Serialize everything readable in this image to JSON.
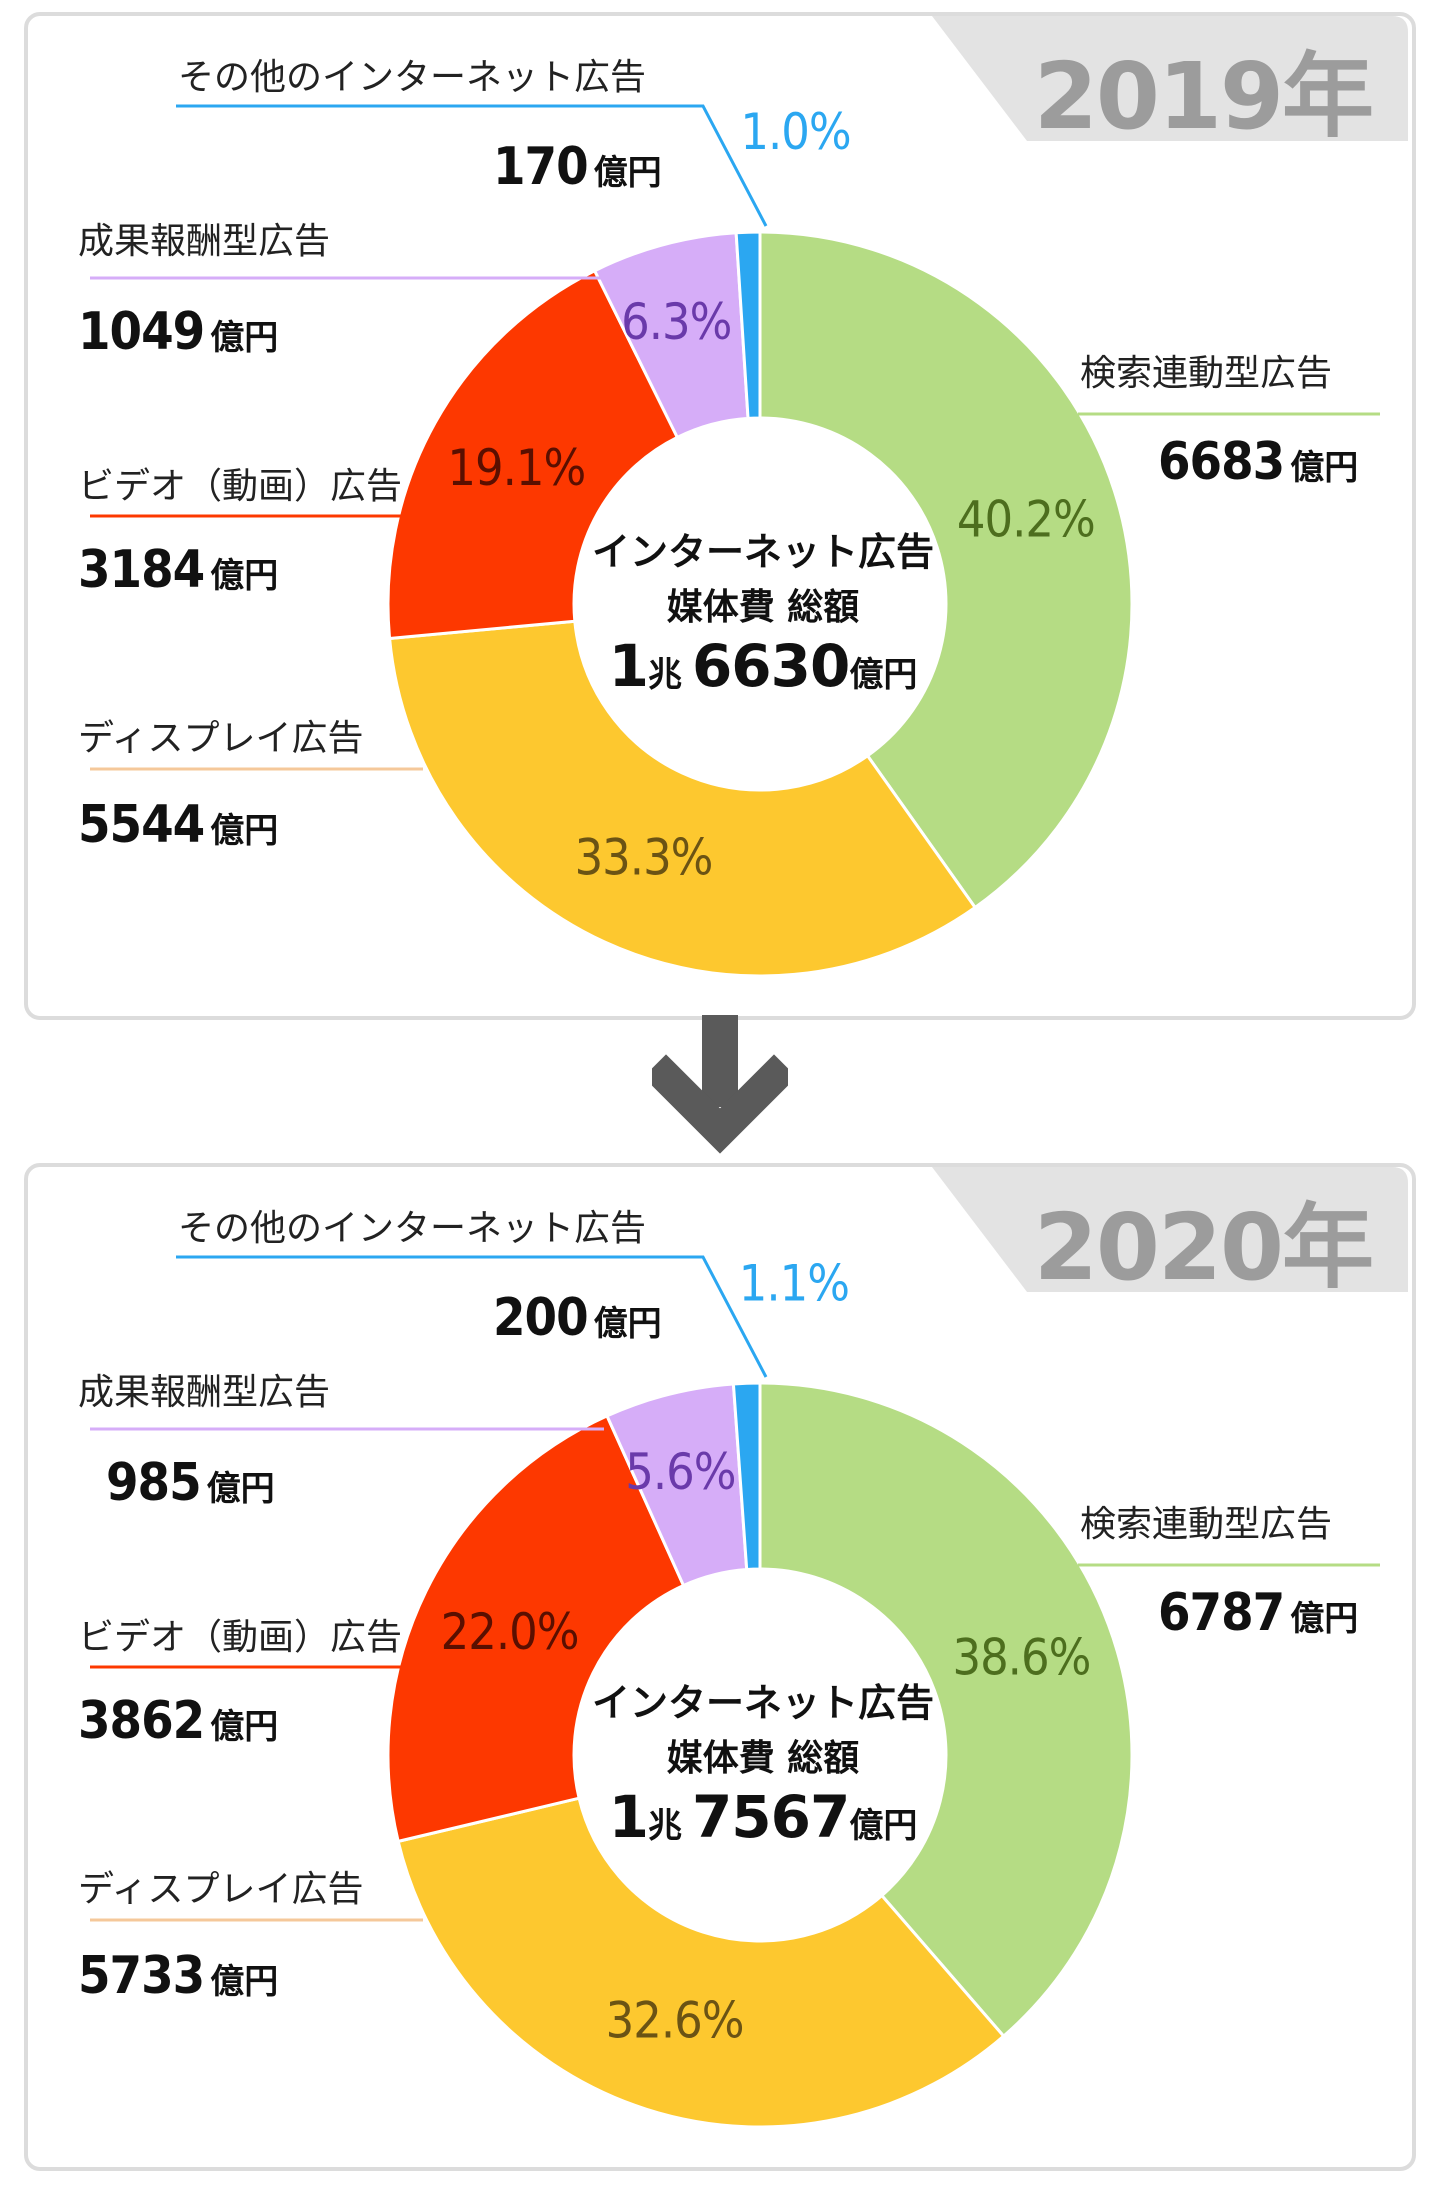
{
  "chart_data": [
    {
      "type": "pie",
      "year": "2019",
      "year_suffix": "年",
      "center": {
        "line1": "インターネット広告",
        "line2": "媒体費 総額",
        "amount_a": "1",
        "unit_a": "兆",
        "amount_b": "6630",
        "unit_b": "億円"
      },
      "slices": [
        {
          "label": "検索連動型広告",
          "value": 6683,
          "unit": "億円",
          "percent": 40.2,
          "percent_text": "40.2%",
          "color": "#b5dc84",
          "text_color": "#4d6e1e",
          "line_color": "#b5dc84"
        },
        {
          "label": "ディスプレイ広告",
          "value": 5544,
          "unit": "億円",
          "percent": 33.3,
          "percent_text": "33.3%",
          "color": "#fdc82f",
          "text_color": "#6b5314",
          "line_color": "#f5c89a"
        },
        {
          "label": "ビデオ（動画）広告",
          "value": 3184,
          "unit": "億円",
          "percent": 19.1,
          "percent_text": "19.1%",
          "color": "#fd3800",
          "text_color": "#5a0f00",
          "line_color": "#fd3800"
        },
        {
          "label": "成果報酬型広告",
          "value": 1049,
          "unit": "億円",
          "percent": 6.3,
          "percent_text": "6.3%",
          "color": "#d6adf8",
          "text_color": "#6a3aaa",
          "line_color": "#d6adf8"
        },
        {
          "label": "その他のインターネット広告",
          "value": 170,
          "unit": "億円",
          "percent": 1.0,
          "percent_text": "1.0%",
          "color": "#2ba7f1",
          "text_color": "#2ba7f1",
          "line_color": "#2ba7f1"
        }
      ]
    },
    {
      "type": "pie",
      "year": "2020",
      "year_suffix": "年",
      "center": {
        "line1": "インターネット広告",
        "line2": "媒体費 総額",
        "amount_a": "1",
        "unit_a": "兆",
        "amount_b": "7567",
        "unit_b": "億円"
      },
      "slices": [
        {
          "label": "検索連動型広告",
          "value": 6787,
          "unit": "億円",
          "percent": 38.6,
          "percent_text": "38.6%",
          "color": "#b5dc84",
          "text_color": "#4d6e1e",
          "line_color": "#b5dc84"
        },
        {
          "label": "ディスプレイ広告",
          "value": 5733,
          "unit": "億円",
          "percent": 32.6,
          "percent_text": "32.6%",
          "color": "#fdc82f",
          "text_color": "#6b5314",
          "line_color": "#f5c89a"
        },
        {
          "label": "ビデオ（動画）広告",
          "value": 3862,
          "unit": "億円",
          "percent": 22.0,
          "percent_text": "22.0%",
          "color": "#fd3800",
          "text_color": "#5a0f00",
          "line_color": "#fd3800"
        },
        {
          "label": "成果報酬型広告",
          "value": 985,
          "unit": "億円",
          "percent": 5.6,
          "percent_text": "5.6%",
          "color": "#d6adf8",
          "text_color": "#6a3aaa",
          "line_color": "#d6adf8"
        },
        {
          "label": "その他のインターネット広告",
          "value": 200,
          "unit": "億円",
          "percent": 1.1,
          "percent_text": "1.1%",
          "color": "#2ba7f1",
          "text_color": "#2ba7f1",
          "line_color": "#2ba7f1"
        }
      ]
    }
  ],
  "arrow": {
    "icon": "down-arrow-icon",
    "color": "#5a5a5a"
  }
}
